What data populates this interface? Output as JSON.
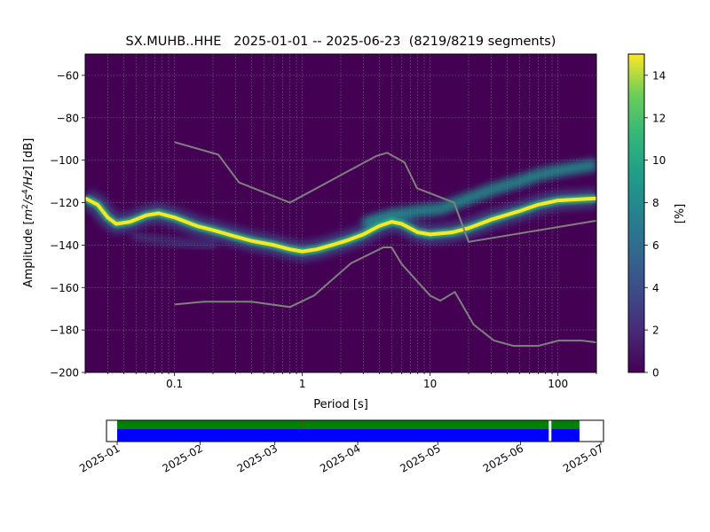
{
  "chart_data": {
    "type": "heatmap",
    "title": "SX.MUHB..HHE   2025-01-01 -- 2025-06-23  (8219/8219 segments)",
    "xlabel": "Period [s]",
    "ylabel_parts": {
      "prefix": "Amplitude [",
      "m": "m",
      "m_exp": "2",
      "mid": "/s",
      "s_exp": "4",
      "suffix": "/Hz] [dB]"
    },
    "x_scale": "log",
    "xlim": [
      0.02,
      200
    ],
    "ylim": [
      -200,
      -50
    ],
    "x_ticks": [
      {
        "value": 0.1,
        "label": "0.1"
      },
      {
        "value": 1,
        "label": "1"
      },
      {
        "value": 10,
        "label": "10"
      },
      {
        "value": 100,
        "label": "100"
      }
    ],
    "y_ticks": [
      {
        "value": -60,
        "label": "−60"
      },
      {
        "value": -80,
        "label": "−80"
      },
      {
        "value": -100,
        "label": "−100"
      },
      {
        "value": -120,
        "label": "−120"
      },
      {
        "value": -140,
        "label": "−140"
      },
      {
        "value": -160,
        "label": "−160"
      },
      {
        "value": -180,
        "label": "−180"
      },
      {
        "value": -200,
        "label": "−200"
      }
    ],
    "grid": true,
    "colorbar": {
      "label": "[%]",
      "range": [
        0,
        15
      ],
      "ticks": [
        {
          "value": 0,
          "label": "0"
        },
        {
          "value": 2,
          "label": "2"
        },
        {
          "value": 4,
          "label": "4"
        },
        {
          "value": 6,
          "label": "6"
        },
        {
          "value": 8,
          "label": "8"
        },
        {
          "value": 10,
          "label": "10"
        },
        {
          "value": 12,
          "label": "12"
        },
        {
          "value": 14,
          "label": "14"
        }
      ],
      "colormap": "viridis"
    },
    "psd_mode_band": [
      [
        0.02,
        -118
      ],
      [
        0.025,
        -121
      ],
      [
        0.03,
        -127
      ],
      [
        0.035,
        -130
      ],
      [
        0.045,
        -129
      ],
      [
        0.06,
        -126
      ],
      [
        0.075,
        -125
      ],
      [
        0.1,
        -127
      ],
      [
        0.15,
        -131
      ],
      [
        0.2,
        -133
      ],
      [
        0.3,
        -136
      ],
      [
        0.4,
        -138
      ],
      [
        0.6,
        -140
      ],
      [
        0.8,
        -142
      ],
      [
        1.0,
        -143
      ],
      [
        1.3,
        -142
      ],
      [
        1.7,
        -140
      ],
      [
        2.2,
        -138
      ],
      [
        3.0,
        -135
      ],
      [
        4.0,
        -131
      ],
      [
        5.0,
        -129
      ],
      [
        6.0,
        -130
      ],
      [
        8.0,
        -134
      ],
      [
        10.0,
        -135
      ],
      [
        15.0,
        -134
      ],
      [
        20.0,
        -132
      ],
      [
        30.0,
        -128
      ],
      [
        50.0,
        -124
      ],
      [
        70.0,
        -121
      ],
      [
        100.0,
        -119
      ],
      [
        200.0,
        -118
      ]
    ],
    "psd_upper_band": [
      [
        3.0,
        -130
      ],
      [
        5.0,
        -126
      ],
      [
        8.0,
        -124
      ],
      [
        12.0,
        -123
      ],
      [
        20.0,
        -118
      ],
      [
        30.0,
        -114
      ],
      [
        50.0,
        -110
      ],
      [
        70.0,
        -107
      ],
      [
        100.0,
        -105
      ],
      [
        200.0,
        -102
      ]
    ],
    "psd_secondary_band": [
      [
        0.05,
        -136
      ],
      [
        0.08,
        -138
      ],
      [
        0.12,
        -139
      ],
      [
        0.2,
        -140
      ]
    ],
    "noise_model_high": [
      [
        0.1,
        -91.5
      ],
      [
        0.22,
        -97.4
      ],
      [
        0.32,
        -110.5
      ],
      [
        0.8,
        -120
      ],
      [
        3.8,
        -98
      ],
      [
        4.6,
        -96.5
      ],
      [
        6.3,
        -101
      ],
      [
        7.9,
        -113.2
      ],
      [
        15.4,
        -120
      ],
      [
        20.0,
        -138.5
      ],
      [
        354.8,
        -126
      ]
    ],
    "noise_model_low": [
      [
        0.1,
        -168
      ],
      [
        0.17,
        -166.7
      ],
      [
        0.4,
        -166.7
      ],
      [
        0.8,
        -169.2
      ],
      [
        1.24,
        -163.7
      ],
      [
        2.4,
        -148.6
      ],
      [
        4.3,
        -141.1
      ],
      [
        5.0,
        -141.1
      ],
      [
        6.0,
        -149
      ],
      [
        10.0,
        -163.8
      ],
      [
        12.0,
        -166.2
      ],
      [
        15.6,
        -162.1
      ],
      [
        21.9,
        -177.5
      ],
      [
        31.6,
        -185
      ],
      [
        45.0,
        -187.5
      ],
      [
        70.0,
        -187.5
      ],
      [
        101.0,
        -185
      ],
      [
        154.0,
        -185
      ],
      [
        328.0,
        -187.5
      ]
    ],
    "timeline": {
      "range": [
        "2024-12-28",
        "2025-07-02"
      ],
      "coverage_start": "2025-01-01",
      "coverage_end": "2025-06-23",
      "gap_dates": [
        "2025-06-12"
      ],
      "top_bar_color": "#008000",
      "bottom_bar_color": "#0000ff",
      "marker_color": "#ff0000",
      "ticks": [
        {
          "date": "2025-01-01",
          "label": "2025-01"
        },
        {
          "date": "2025-02-01",
          "label": "2025-02"
        },
        {
          "date": "2025-03-01",
          "label": "2025-03"
        },
        {
          "date": "2025-04-01",
          "label": "2025-04"
        },
        {
          "date": "2025-05-01",
          "label": "2025-05"
        },
        {
          "date": "2025-06-01",
          "label": "2025-06"
        },
        {
          "date": "2025-07-01",
          "label": "2025-07"
        }
      ]
    }
  }
}
